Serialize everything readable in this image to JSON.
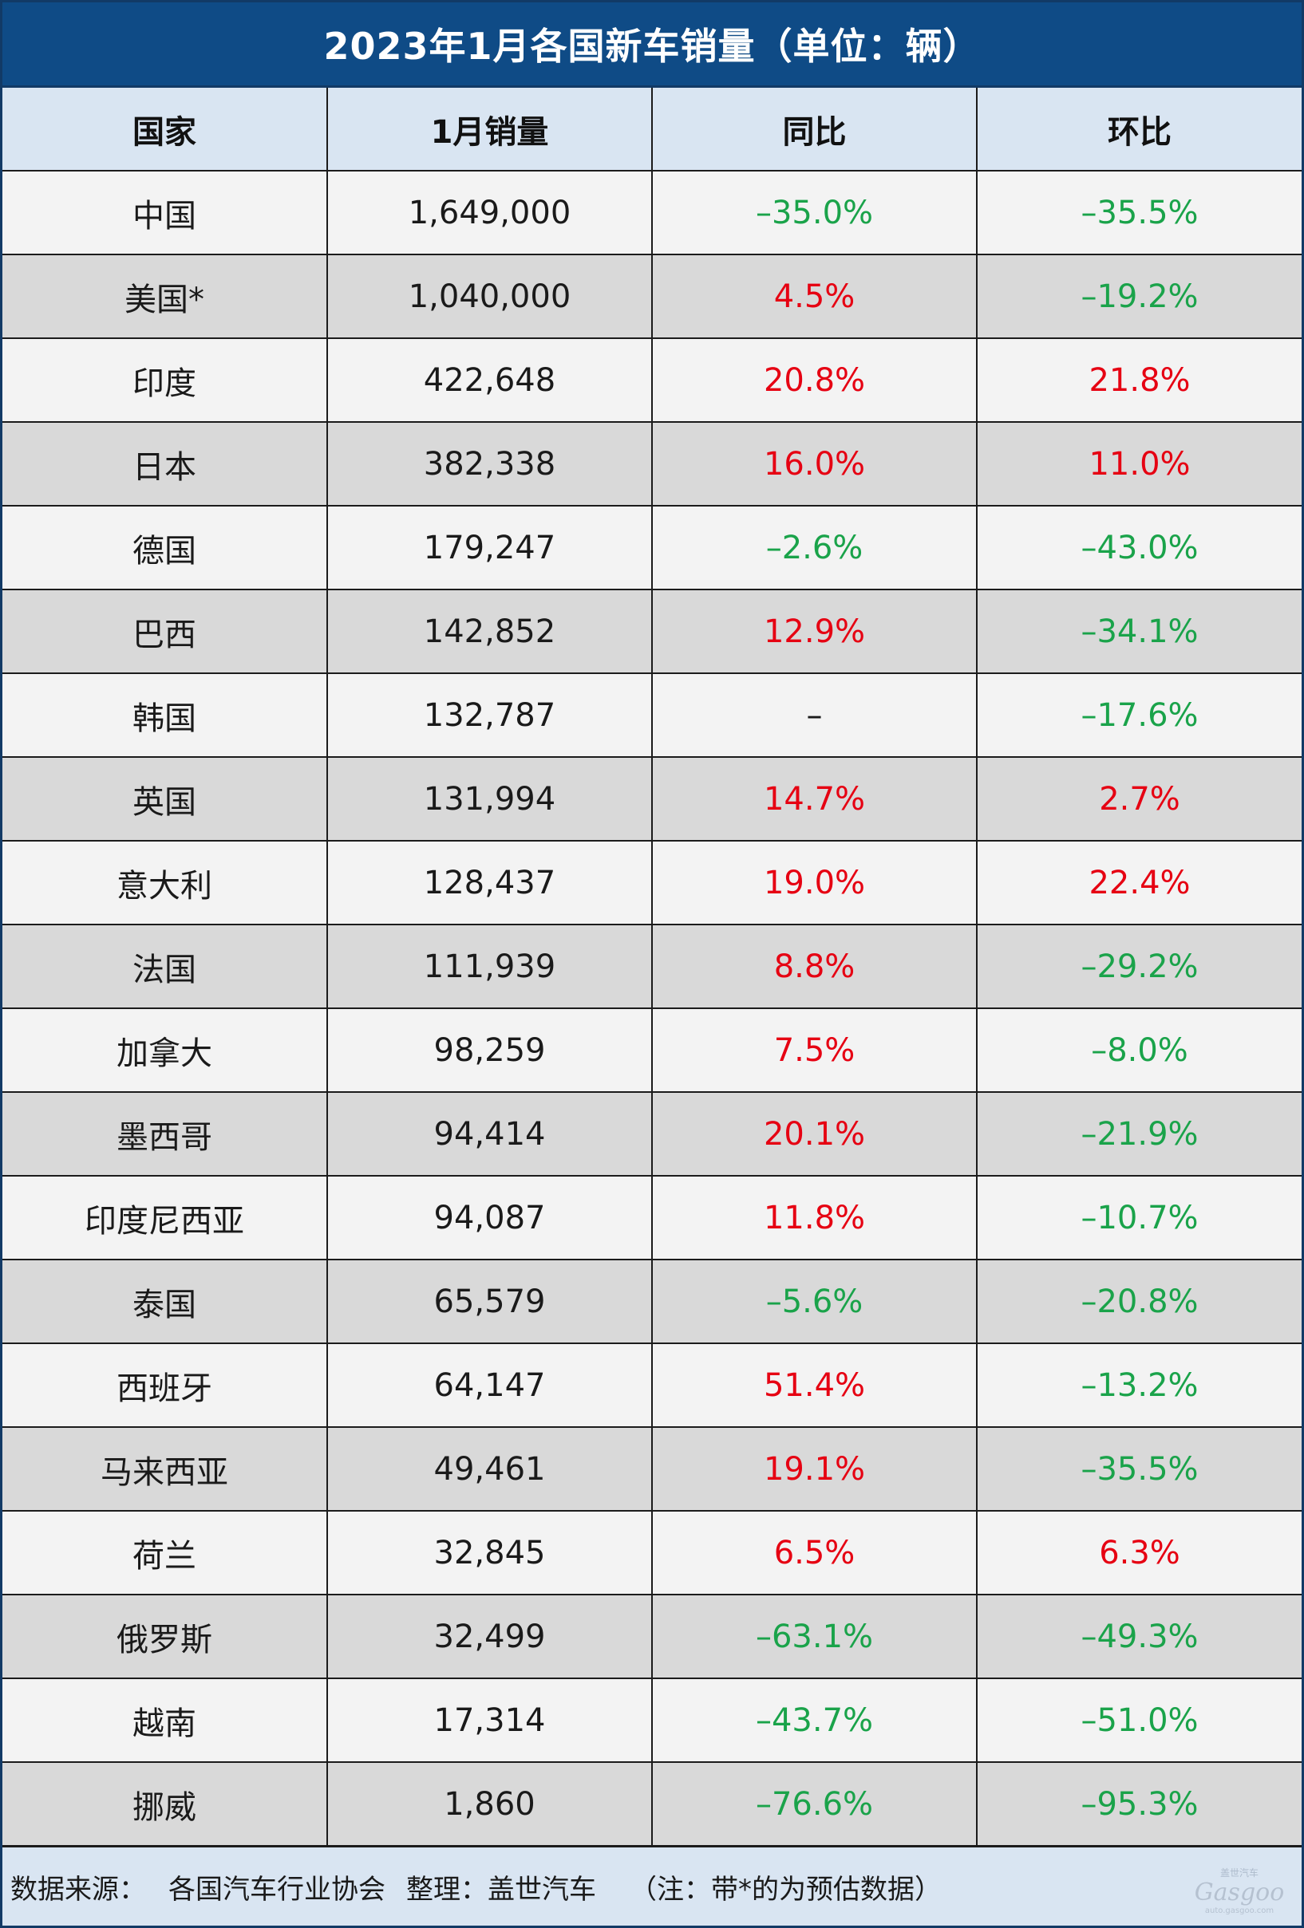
{
  "title": "2023年1月各国新车销量（单位：辆）",
  "headers": [
    "国家",
    "1月销量",
    "同比",
    "环比"
  ],
  "colors": {
    "header_bg": "#0f4b86",
    "column_header_bg": "#d9e5f2",
    "row_light": "#f3f3f3",
    "row_dark": "#d9d9d9",
    "positive": "#e60012",
    "negative": "#1aa34a"
  },
  "rows": [
    {
      "country": "中国",
      "sales": "1,649,000",
      "yoy": "–35.0%",
      "mom": "–35.5%"
    },
    {
      "country": "美国*",
      "sales": "1,040,000",
      "yoy": "4.5%",
      "mom": "–19.2%"
    },
    {
      "country": "印度",
      "sales": "422,648",
      "yoy": "20.8%",
      "mom": "21.8%"
    },
    {
      "country": "日本",
      "sales": "382,338",
      "yoy": "16.0%",
      "mom": "11.0%"
    },
    {
      "country": "德国",
      "sales": "179,247",
      "yoy": "–2.6%",
      "mom": "–43.0%"
    },
    {
      "country": "巴西",
      "sales": "142,852",
      "yoy": "12.9%",
      "mom": "–34.1%"
    },
    {
      "country": "韩国",
      "sales": "132,787",
      "yoy": "–",
      "mom": "–17.6%"
    },
    {
      "country": "英国",
      "sales": "131,994",
      "yoy": "14.7%",
      "mom": "2.7%"
    },
    {
      "country": "意大利",
      "sales": "128,437",
      "yoy": "19.0%",
      "mom": "22.4%"
    },
    {
      "country": "法国",
      "sales": "111,939",
      "yoy": "8.8%",
      "mom": "–29.2%"
    },
    {
      "country": "加拿大",
      "sales": "98,259",
      "yoy": "7.5%",
      "mom": "–8.0%"
    },
    {
      "country": "墨西哥",
      "sales": "94,414",
      "yoy": "20.1%",
      "mom": "–21.9%"
    },
    {
      "country": "印度尼西亚",
      "sales": "94,087",
      "yoy": "11.8%",
      "mom": "–10.7%"
    },
    {
      "country": "泰国",
      "sales": "65,579",
      "yoy": "–5.6%",
      "mom": "–20.8%"
    },
    {
      "country": "西班牙",
      "sales": "64,147",
      "yoy": "51.4%",
      "mom": "–13.2%"
    },
    {
      "country": "马来西亚",
      "sales": "49,461",
      "yoy": "19.1%",
      "mom": "–35.5%"
    },
    {
      "country": "荷兰",
      "sales": "32,845",
      "yoy": "6.5%",
      "mom": "6.3%"
    },
    {
      "country": "俄罗斯",
      "sales": "32,499",
      "yoy": "–63.1%",
      "mom": "–49.3%"
    },
    {
      "country": "越南",
      "sales": "17,314",
      "yoy": "–43.7%",
      "mom": "–51.0%"
    },
    {
      "country": "挪威",
      "sales": "1,860",
      "yoy": "–76.6%",
      "mom": "–95.3%"
    }
  ],
  "footer": {
    "source_label": "数据来源：",
    "source": "各国汽车行业协会",
    "compiler_label": "整理：",
    "compiler": "盖世汽车",
    "note": "（注：带*的为预估数据）"
  },
  "watermark_icon": "gasgoo-logo-watermark"
}
